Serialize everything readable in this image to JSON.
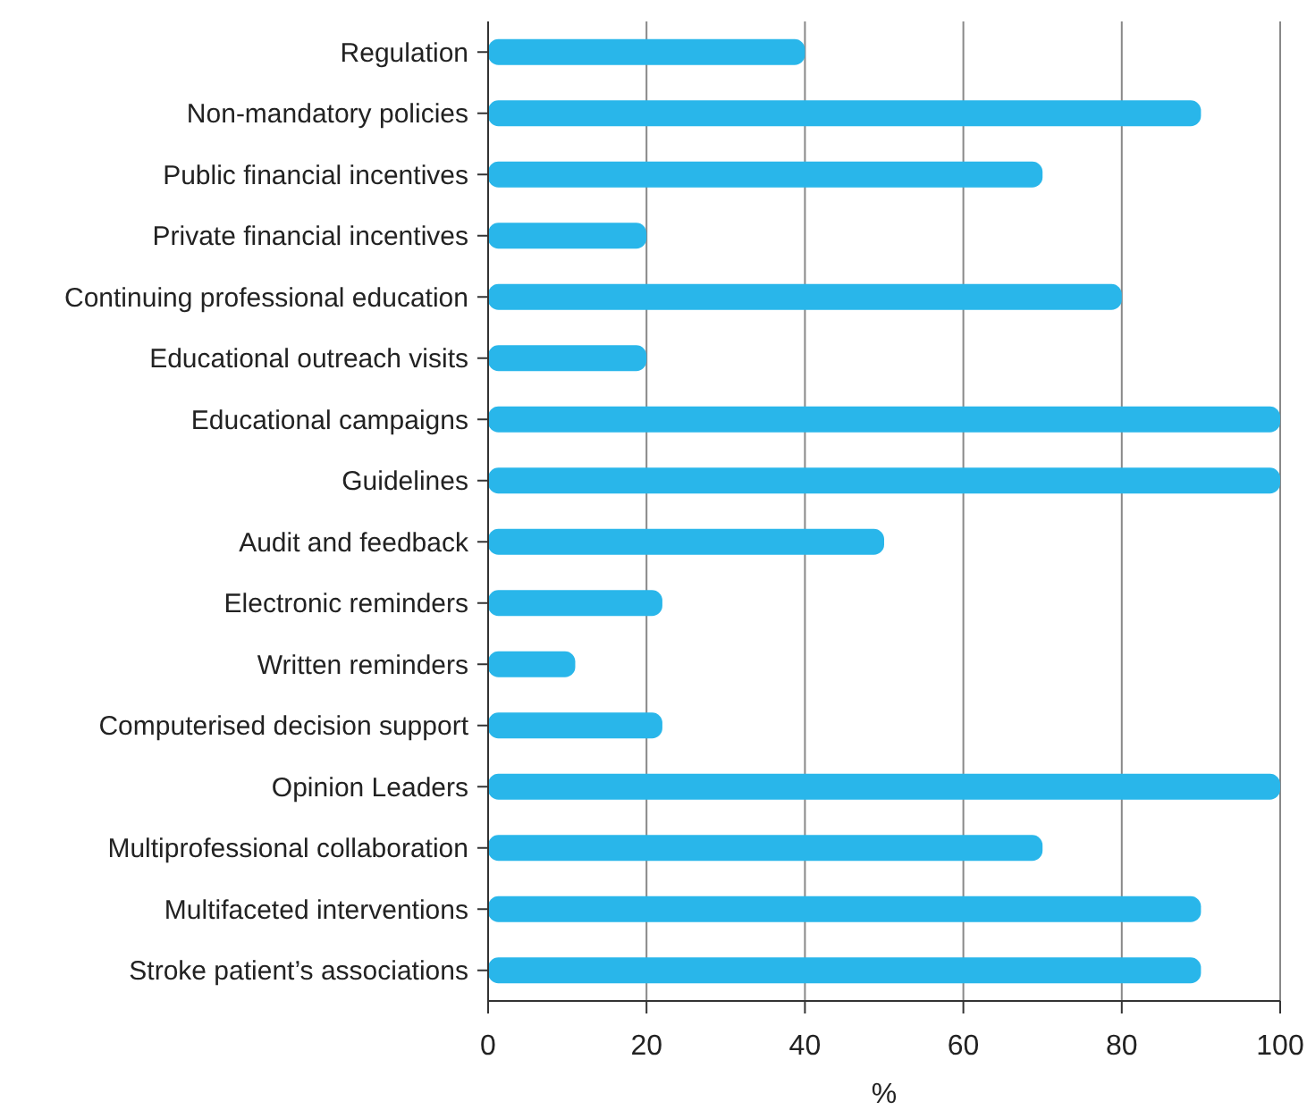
{
  "chart_data": {
    "type": "bar",
    "orientation": "horizontal",
    "xlabel": "%",
    "categories": [
      "Regulation",
      "Non-mandatory policies",
      "Public financial incentives",
      "Private financial incentives",
      "Continuing professional education",
      "Educational outreach visits",
      "Educational campaigns",
      "Guidelines",
      "Audit and feedback",
      "Electronic reminders",
      "Written reminders",
      "Computerised decision support",
      "Opinion Leaders",
      "Multiprofessional collaboration",
      "Multifaceted interventions",
      "Stroke patient’s associations"
    ],
    "values": [
      40,
      90,
      70,
      20,
      80,
      20,
      100,
      100,
      50,
      22,
      11,
      22,
      100,
      70,
      90,
      90
    ],
    "color": "#29b6ea",
    "xlim": [
      0,
      100
    ],
    "xticks": [
      0,
      20,
      40,
      60,
      80,
      100
    ],
    "grid": "x"
  }
}
